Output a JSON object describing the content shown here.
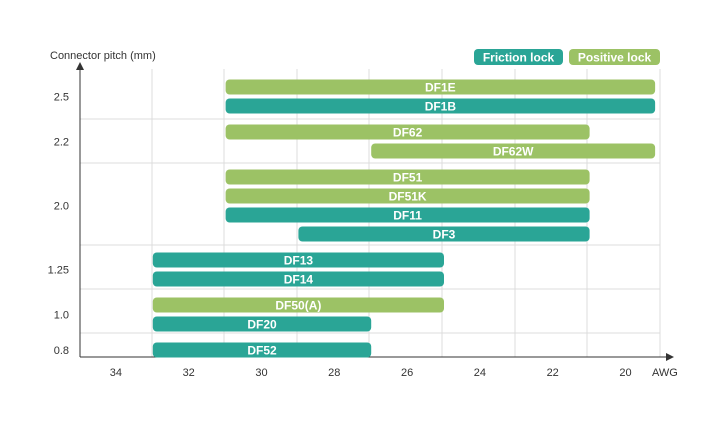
{
  "chart_data": {
    "type": "bar",
    "orientation": "horizontal-range",
    "title": "",
    "ylabel": "Connector pitch (mm)",
    "xlabel": "AWG",
    "x_ticks": [
      34,
      32,
      30,
      28,
      26,
      24,
      22,
      20
    ],
    "x_range": [
      35,
      19
    ],
    "x_reversed": true,
    "grid": true,
    "legend_position": "top-right",
    "legend": [
      {
        "key": "friction",
        "label": "Friction lock",
        "color": "#2aa596"
      },
      {
        "key": "positive",
        "label": "Positive lock",
        "color": "#9cc265"
      }
    ],
    "groups": [
      {
        "pitch": "2.5",
        "bars": [
          {
            "name": "DF1E",
            "type": "positive",
            "awg_from": 31,
            "awg_to": 19.2
          },
          {
            "name": "DF1B",
            "type": "friction",
            "awg_from": 31,
            "awg_to": 19.2
          }
        ]
      },
      {
        "pitch": "2.2",
        "bars": [
          {
            "name": "DF62",
            "type": "positive",
            "awg_from": 31,
            "awg_to": 21
          },
          {
            "name": "DF62W",
            "type": "positive",
            "awg_from": 27,
            "awg_to": 19.2
          }
        ]
      },
      {
        "pitch": "2.0",
        "bars": [
          {
            "name": "DF51",
            "type": "positive",
            "awg_from": 31,
            "awg_to": 21
          },
          {
            "name": "DF51K",
            "type": "positive",
            "awg_from": 31,
            "awg_to": 21
          },
          {
            "name": "DF11",
            "type": "friction",
            "awg_from": 31,
            "awg_to": 21
          },
          {
            "name": "DF3",
            "type": "friction",
            "awg_from": 29,
            "awg_to": 21
          }
        ]
      },
      {
        "pitch": "1.25",
        "bars": [
          {
            "name": "DF13",
            "type": "friction",
            "awg_from": 33,
            "awg_to": 25
          },
          {
            "name": "DF14",
            "type": "friction",
            "awg_from": 33,
            "awg_to": 25
          }
        ]
      },
      {
        "pitch": "1.0",
        "bars": [
          {
            "name": "DF50(A)",
            "type": "positive",
            "awg_from": 33,
            "awg_to": 25
          },
          {
            "name": "DF20",
            "type": "friction",
            "awg_from": 33,
            "awg_to": 27
          }
        ]
      },
      {
        "pitch": "0.8",
        "bars": [
          {
            "name": "DF52",
            "type": "friction",
            "awg_from": 33,
            "awg_to": 27
          }
        ]
      }
    ]
  }
}
